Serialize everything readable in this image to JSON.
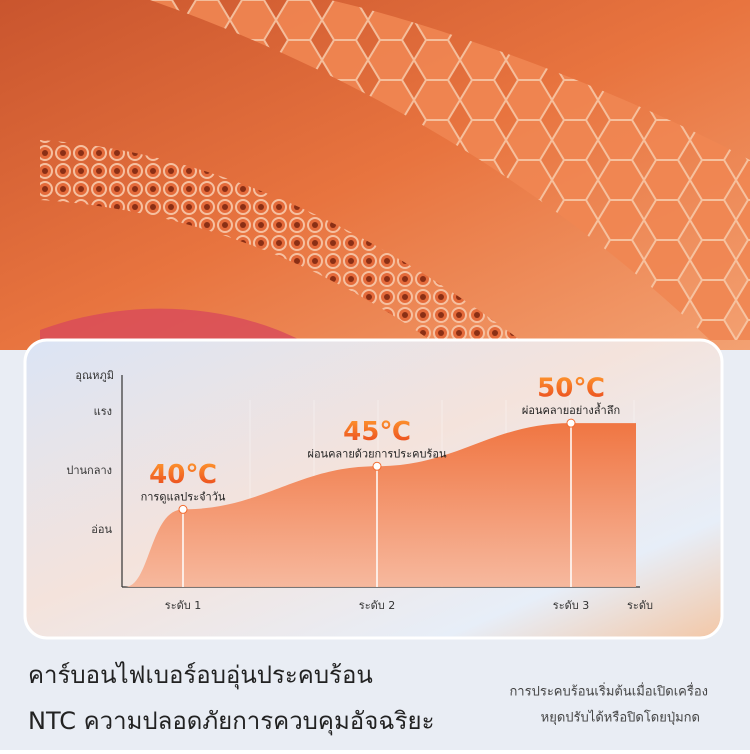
{
  "chart_data": {
    "type": "area",
    "y_label": "อุณหภูมิ",
    "x_label": "ระดับ",
    "y_categories": [
      "อ่อน",
      "ปานกลาง",
      "แรง"
    ],
    "categories": [
      "ระดับ 1",
      "ระดับ 2",
      "ระดับ 3"
    ],
    "values": [
      40,
      45,
      50
    ],
    "value_labels": [
      "40℃",
      "45℃",
      "50℃"
    ],
    "annotations": [
      "การดูแลประจำวัน",
      "ผ่อนคลายด้วยการประคบร้อน",
      "ผ่อนคลายอย่างล้ำลึก"
    ],
    "ylim": [
      31,
      55
    ],
    "color": "#f26a2e"
  },
  "footer": {
    "headline": [
      "คาร์บอนไฟเบอร์อบอุ่นประคบร้อน",
      "NTC ความปลอดภัยการควบคุมอัจฉริยะ"
    ],
    "note": [
      "การประคบร้อนเริ่มต้นเมื่อเปิดเครื่อง",
      "หยุดปรับได้หรือปิดโดยปุ่มกด"
    ]
  }
}
